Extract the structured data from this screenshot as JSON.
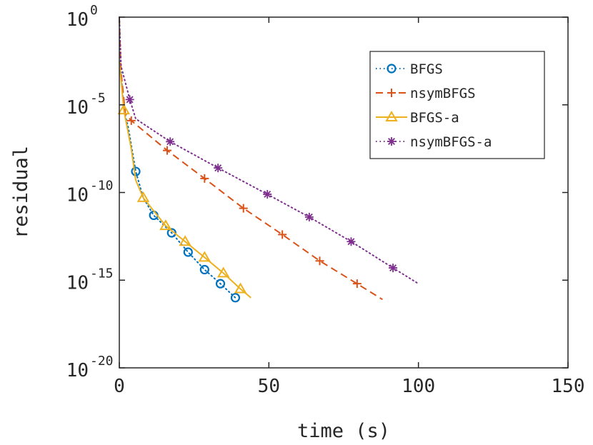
{
  "chart_data": {
    "type": "line",
    "xlabel": "time (s)",
    "ylabel": "residual",
    "xlim": [
      0,
      150
    ],
    "ylim_log10": [
      -20,
      0
    ],
    "yscale": "log",
    "x_ticks": [
      0,
      50,
      100,
      150
    ],
    "x_tick_labels": [
      "0",
      "50",
      "100",
      "150"
    ],
    "y_ticks_exp": [
      0,
      -5,
      -10,
      -15,
      -20
    ],
    "y_tick_base": "10",
    "y_tick_exp_labels": [
      "0",
      "-5",
      "-10",
      "-15",
      "-20"
    ],
    "grid": false,
    "legend_position": "top-right",
    "series": [
      {
        "name": "BFGS",
        "color": "#0072BD",
        "line_style": "dotted",
        "marker": "circle",
        "line": [
          [
            0,
            0
          ],
          [
            0.5,
            -3
          ],
          [
            1.5,
            -5.3
          ],
          [
            3,
            -6.3
          ],
          [
            5.5,
            -8.8
          ],
          [
            8,
            -10.3
          ],
          [
            11.5,
            -11.3
          ],
          [
            17.5,
            -12.3
          ],
          [
            23,
            -13.4
          ],
          [
            28.5,
            -14.4
          ],
          [
            33.8,
            -15.2
          ],
          [
            38.8,
            -16
          ]
        ],
        "markers": [
          [
            5.5,
            -8.8
          ],
          [
            11.5,
            -11.3
          ],
          [
            17.5,
            -12.3
          ],
          [
            23,
            -13.4
          ],
          [
            28.5,
            -14.4
          ],
          [
            33.8,
            -15.2
          ],
          [
            38.8,
            -16
          ]
        ]
      },
      {
        "name": "nsymBFGS",
        "color": "#D95319",
        "line_style": "dashed",
        "marker": "plus",
        "line": [
          [
            0,
            0
          ],
          [
            0.5,
            -3
          ],
          [
            2,
            -5.5
          ],
          [
            4,
            -5.9
          ],
          [
            16,
            -7.6
          ],
          [
            28.5,
            -9.2
          ],
          [
            41.5,
            -10.9
          ],
          [
            54.5,
            -12.4
          ],
          [
            67,
            -13.9
          ],
          [
            79.5,
            -15.2
          ],
          [
            88,
            -16.1
          ]
        ],
        "markers": [
          [
            4,
            -5.9
          ],
          [
            16,
            -7.6
          ],
          [
            28.5,
            -9.2
          ],
          [
            41.5,
            -10.9
          ],
          [
            54.5,
            -12.4
          ],
          [
            67,
            -13.9
          ],
          [
            79.5,
            -15.2
          ]
        ]
      },
      {
        "name": "BFGS-a",
        "color": "#EDB120",
        "line_style": "solid",
        "marker": "triangle",
        "line": [
          [
            0,
            -2.5
          ],
          [
            1.5,
            -5.3
          ],
          [
            4,
            -7.5
          ],
          [
            5.5,
            -9.3
          ],
          [
            8,
            -10.3
          ],
          [
            15.5,
            -11.9
          ],
          [
            22,
            -12.8
          ],
          [
            28.5,
            -13.7
          ],
          [
            34.8,
            -14.6
          ],
          [
            40.5,
            -15.5
          ],
          [
            44,
            -16
          ]
        ],
        "markers": [
          [
            1.5,
            -5.3
          ],
          [
            8,
            -10.3
          ],
          [
            15.5,
            -11.9
          ],
          [
            22,
            -12.8
          ],
          [
            28.5,
            -13.7
          ],
          [
            34.8,
            -14.6
          ],
          [
            40.5,
            -15.5
          ]
        ]
      },
      {
        "name": "nsymBFGS-a",
        "color": "#7E2F8E",
        "line_style": "dotted",
        "marker": "asterisk",
        "line": [
          [
            0,
            0
          ],
          [
            0.6,
            -2.8
          ],
          [
            3.5,
            -4.7
          ],
          [
            5.5,
            -5.8
          ],
          [
            17,
            -7.1
          ],
          [
            33,
            -8.6
          ],
          [
            49.5,
            -10.1
          ],
          [
            63.5,
            -11.4
          ],
          [
            77.5,
            -12.8
          ],
          [
            91.5,
            -14.3
          ],
          [
            100,
            -15.2
          ]
        ],
        "markers": [
          [
            3.5,
            -4.7
          ],
          [
            17,
            -7.1
          ],
          [
            33,
            -8.6
          ],
          [
            49.5,
            -10.1
          ],
          [
            63.5,
            -11.4
          ],
          [
            77.5,
            -12.8
          ],
          [
            91.5,
            -14.3
          ]
        ]
      }
    ]
  }
}
